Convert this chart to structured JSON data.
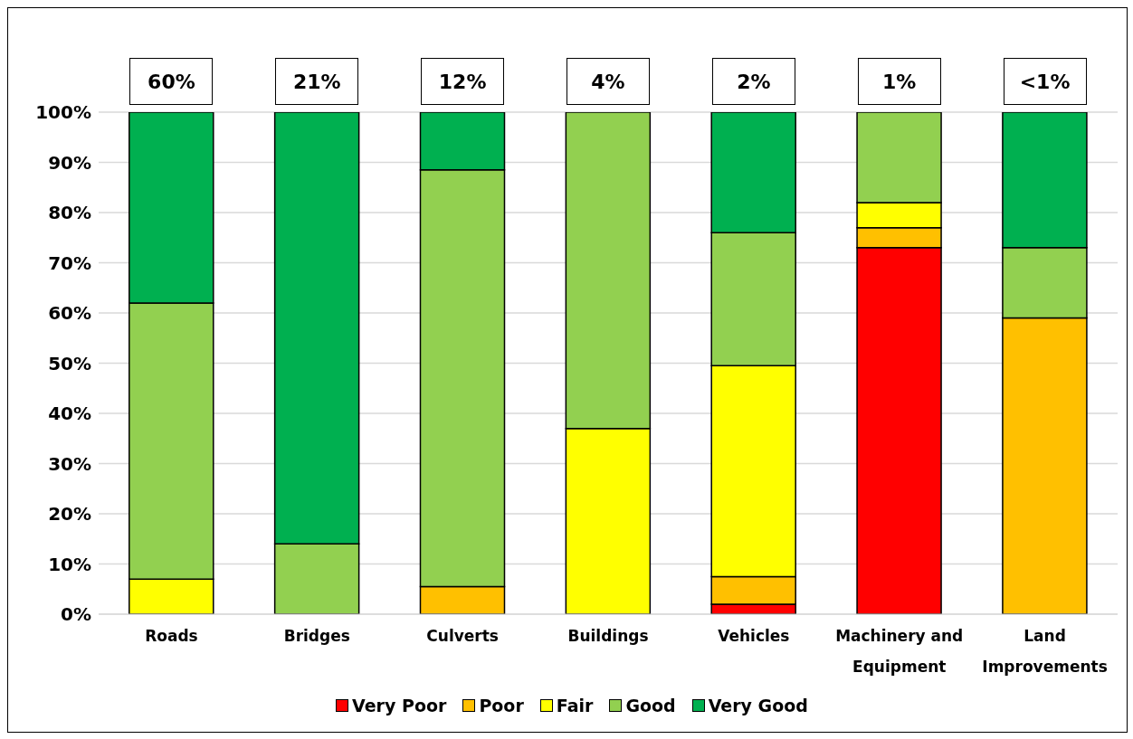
{
  "chart_data": {
    "type": "bar",
    "stacked": true,
    "categories": [
      "Roads",
      "Bridges",
      "Culverts",
      "Buildings",
      "Vehicles",
      "Machinery and Equipment",
      "Land Improvements"
    ],
    "series": [
      {
        "name": "Very Poor",
        "color": "#ff0000",
        "values": [
          0,
          0,
          0,
          0,
          2,
          73,
          0
        ]
      },
      {
        "name": "Poor",
        "color": "#ffc000",
        "values": [
          0,
          0,
          5.5,
          0,
          5.5,
          4,
          59
        ]
      },
      {
        "name": "Fair",
        "color": "#ffff00",
        "values": [
          7,
          0,
          0,
          37,
          42,
          5,
          0
        ]
      },
      {
        "name": "Good",
        "color": "#92d050",
        "values": [
          55,
          14,
          83,
          63,
          26.5,
          18,
          14
        ]
      },
      {
        "name": "Very Good",
        "color": "#00b050",
        "values": [
          38,
          86,
          11.5,
          0,
          24,
          0,
          27
        ]
      }
    ],
    "ylim": [
      0,
      100
    ],
    "yticks": [
      {
        "value": 0,
        "label": "0%"
      },
      {
        "value": 10,
        "label": "10%"
      },
      {
        "value": 20,
        "label": "20%"
      },
      {
        "value": 30,
        "label": "30%"
      },
      {
        "value": 40,
        "label": "40%"
      },
      {
        "value": 50,
        "label": "50%"
      },
      {
        "value": 60,
        "label": "60%"
      },
      {
        "value": 70,
        "label": "70%"
      },
      {
        "value": 80,
        "label": "80%"
      },
      {
        "value": 90,
        "label": "90%"
      },
      {
        "value": 100,
        "label": "100%"
      }
    ],
    "grid": "y",
    "legend": "bottom",
    "annotations": [
      "60%",
      "21%",
      "12%",
      "4%",
      "2%",
      "1%",
      "<1%"
    ]
  }
}
